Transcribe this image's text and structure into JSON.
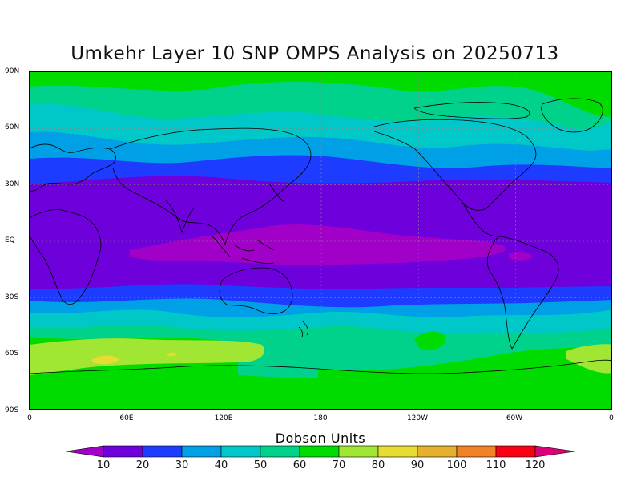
{
  "title": "Umkehr Layer 10 SNP OMPS Analysis on 20250713",
  "units_label": "Dobson Units",
  "lat_labels": [
    "90N",
    "60N",
    "30N",
    "EQ",
    "30S",
    "60S",
    "90S"
  ],
  "lon_labels": [
    "0",
    "60E",
    "120E",
    "180",
    "120W",
    "60W",
    "0"
  ],
  "colorbar": {
    "labels": [
      "10",
      "20",
      "30",
      "40",
      "50",
      "60",
      "70",
      "80",
      "90",
      "100",
      "110",
      "120"
    ],
    "colors": [
      "#a000c8",
      "#6e00dc",
      "#1e3cff",
      "#00a0e6",
      "#00c8c8",
      "#00d28c",
      "#00dc00",
      "#a0e632",
      "#e6dc32",
      "#e6af2d",
      "#f08228",
      "#fa0014",
      "#dc0078"
    ]
  },
  "field_colors": {
    "under_10": "#a000c8",
    "10_20": "#6e00dc",
    "20_30": "#1e3cff",
    "30_40": "#00a0e6",
    "40_50": "#00c8c8",
    "50_60": "#00d28c",
    "60_70": "#00dc00",
    "70_80": "#a0e632",
    "80_90": "#e6dc32"
  }
}
